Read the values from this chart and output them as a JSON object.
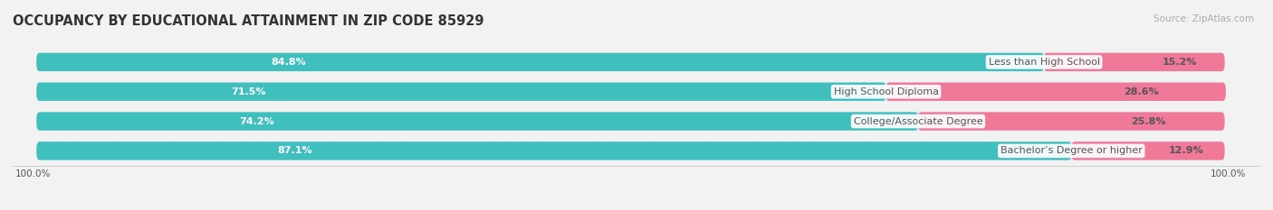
{
  "title": "OCCUPANCY BY EDUCATIONAL ATTAINMENT IN ZIP CODE 85929",
  "source": "Source: ZipAtlas.com",
  "categories": [
    "Less than High School",
    "High School Diploma",
    "College/Associate Degree",
    "Bachelor’s Degree or higher"
  ],
  "owner_pct": [
    84.8,
    71.5,
    74.2,
    87.1
  ],
  "renter_pct": [
    15.2,
    28.6,
    25.8,
    12.9
  ],
  "owner_color": "#40bfbf",
  "renter_color": "#f07898",
  "bg_color": "#f2f2f2",
  "bar_bg_color": "#e2e2ea",
  "title_color": "#333333",
  "label_color_dark": "#555555",
  "title_fontsize": 10.5,
  "bar_label_fontsize": 8,
  "category_fontsize": 8,
  "legend_fontsize": 8.5,
  "source_fontsize": 7.5,
  "bar_height": 0.62,
  "x_ticks_label": "100.0%"
}
